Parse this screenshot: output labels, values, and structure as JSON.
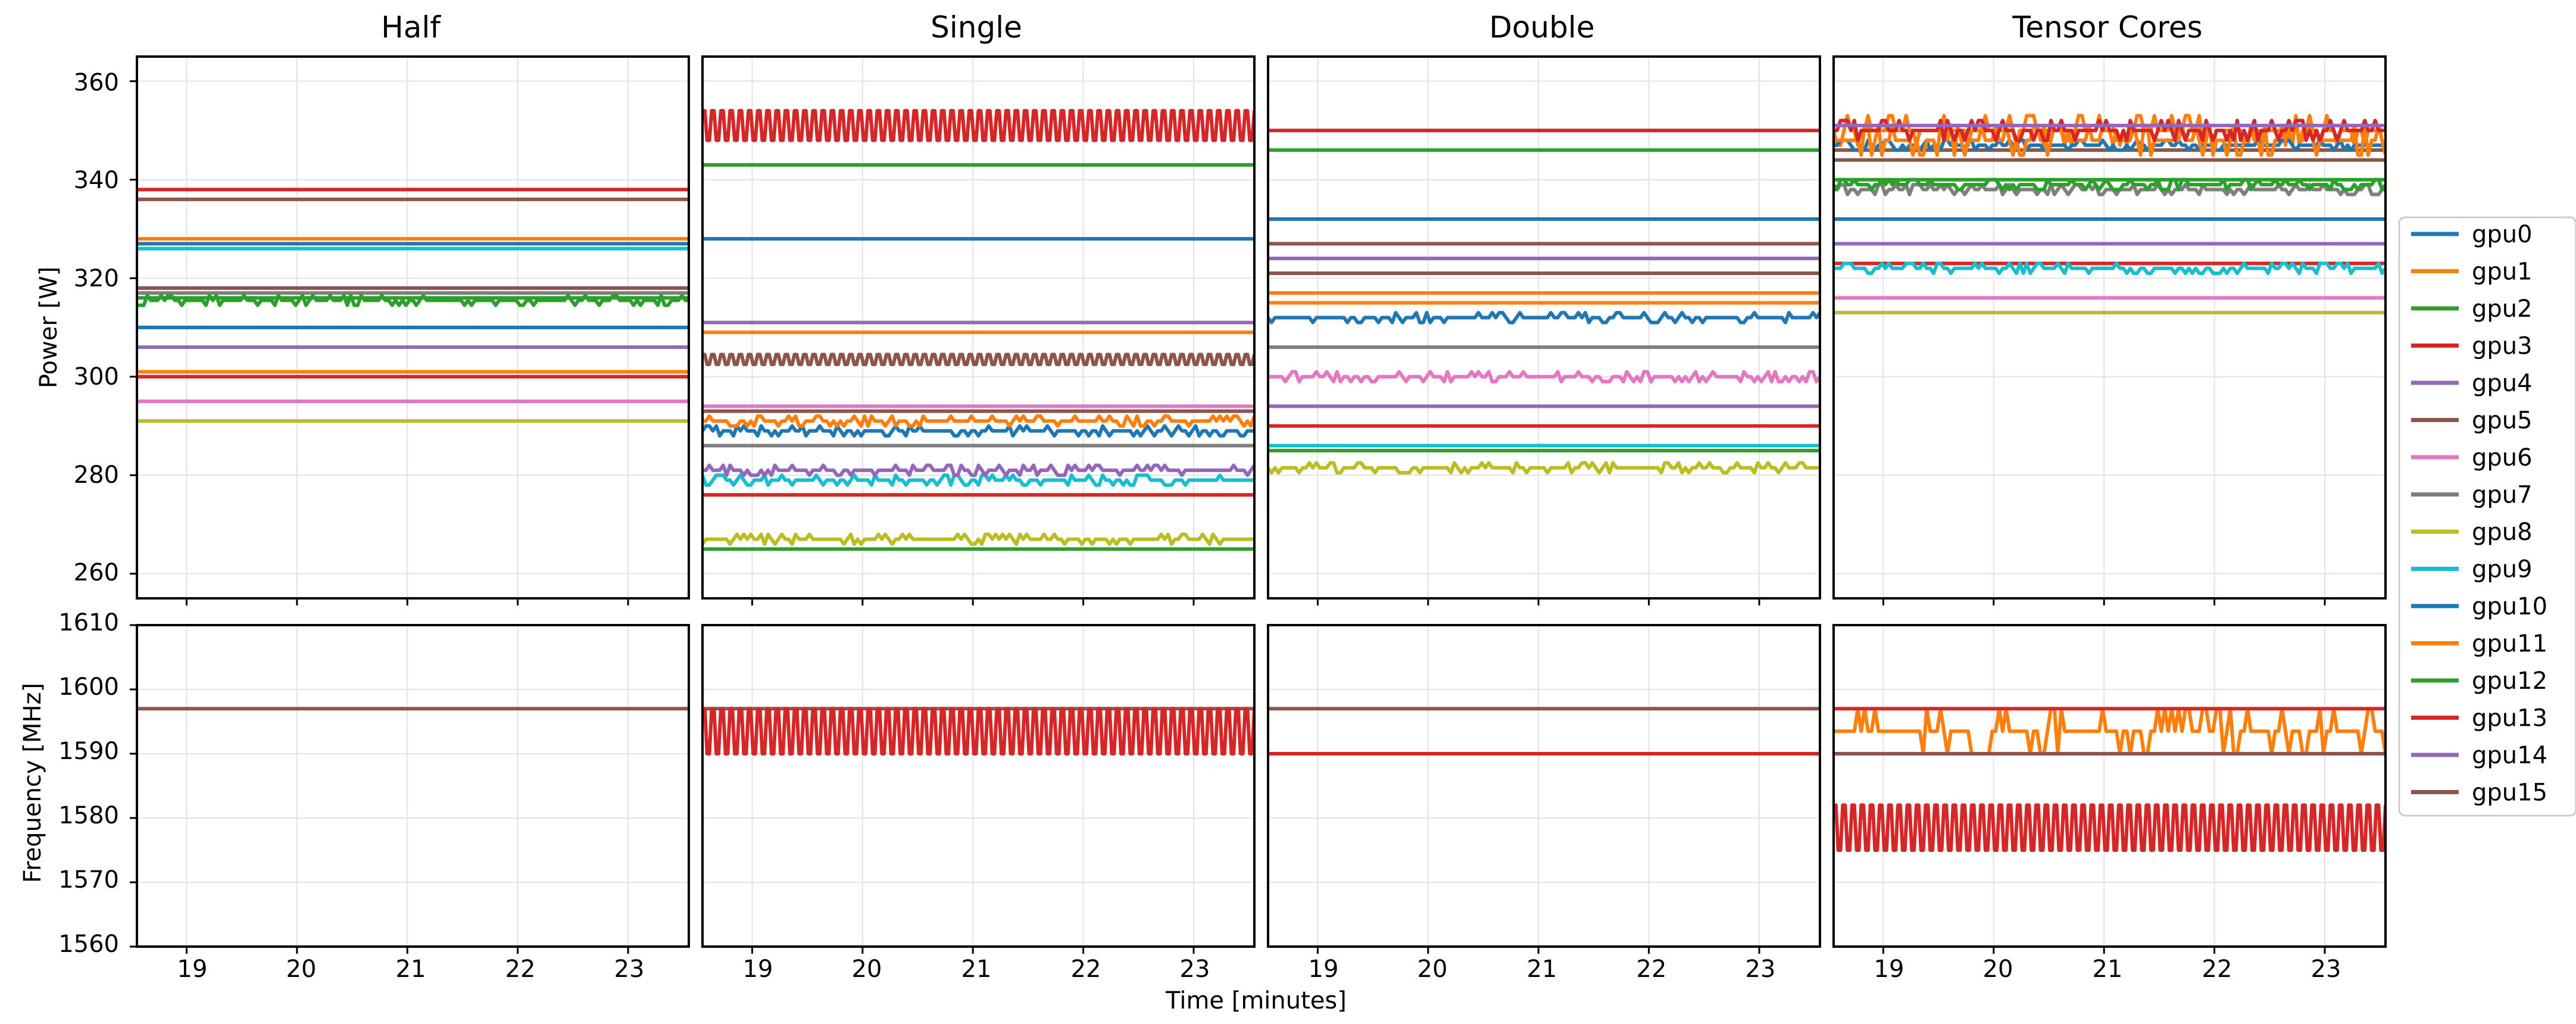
{
  "chart_data": {
    "type": "line",
    "figure_xlabel": "Time [minutes]",
    "xlim": [
      18.55,
      23.55
    ],
    "xticks": [
      "19",
      "20",
      "21",
      "22",
      "23"
    ],
    "legend_placement": "right-center",
    "series_colors": [
      "#1f77b4",
      "#ff7f0e",
      "#2ca02c",
      "#d62728",
      "#9467bd",
      "#8c564b",
      "#e377c2",
      "#7f7f7f",
      "#bcbd22",
      "#17becf",
      "#1f77b4",
      "#ff7f0e",
      "#2ca02c",
      "#d62728",
      "#9467bd",
      "#8c564b"
    ],
    "series_names": [
      "gpu0",
      "gpu1",
      "gpu2",
      "gpu3",
      "gpu4",
      "gpu5",
      "gpu6",
      "gpu7",
      "gpu8",
      "gpu9",
      "gpu10",
      "gpu11",
      "gpu12",
      "gpu13",
      "gpu14",
      "gpu15"
    ],
    "power": {
      "ylabel": "Power [W]",
      "ylim": [
        255,
        365
      ],
      "yticks": [
        "260",
        "280",
        "300",
        "320",
        "340",
        "360"
      ]
    },
    "frequency": {
      "ylabel": "Frequency [MHz]",
      "ylim": [
        1560,
        1610
      ],
      "yticks": [
        "1560",
        "1570",
        "1580",
        "1590",
        "1600",
        "1610"
      ]
    },
    "panels": [
      {
        "title": "Half",
        "power": [
          {
            "name": "gpu0",
            "base": 310,
            "pattern": "flat"
          },
          {
            "name": "gpu1",
            "base": 301,
            "pattern": "flat"
          },
          {
            "name": "gpu2",
            "base": 316,
            "pattern": "flat"
          },
          {
            "name": "gpu3",
            "base": 338,
            "pattern": "flat"
          },
          {
            "name": "gpu4",
            "base": 306,
            "pattern": "flat"
          },
          {
            "name": "gpu5",
            "base": 336,
            "pattern": "flat"
          },
          {
            "name": "gpu6",
            "base": 295,
            "pattern": "flat"
          },
          {
            "name": "gpu7",
            "base": 317,
            "pattern": "flat"
          },
          {
            "name": "gpu8",
            "base": 291,
            "pattern": "flat"
          },
          {
            "name": "gpu9",
            "base": 326,
            "pattern": "flat"
          },
          {
            "name": "gpu10",
            "base": 327,
            "pattern": "flat"
          },
          {
            "name": "gpu11",
            "base": 328,
            "pattern": "flat"
          },
          {
            "name": "gpu12",
            "base": 315.5,
            "pattern": "noisy",
            "amp": 1
          },
          {
            "name": "gpu13",
            "base": 300,
            "pattern": "flat"
          },
          {
            "name": "gpu14",
            "base": 318,
            "pattern": "flat"
          },
          {
            "name": "gpu15",
            "base": 318,
            "pattern": "flat"
          }
        ],
        "frequency": [
          {
            "name": "gpu15",
            "base": 1597,
            "pattern": "flat"
          }
        ]
      },
      {
        "title": "Single",
        "power": [
          {
            "name": "gpu0",
            "base": 328,
            "pattern": "flat"
          },
          {
            "name": "gpu1",
            "base": 309,
            "pattern": "flat"
          },
          {
            "name": "gpu2",
            "base": 343,
            "pattern": "flat"
          },
          {
            "name": "gpu3",
            "base": 351,
            "pattern": "osc",
            "amp": 3
          },
          {
            "name": "gpu4",
            "base": 311,
            "pattern": "flat"
          },
          {
            "name": "gpu5",
            "base": 303.5,
            "pattern": "osc",
            "amp": 1
          },
          {
            "name": "gpu6",
            "base": 294,
            "pattern": "flat"
          },
          {
            "name": "gpu7",
            "base": 286,
            "pattern": "flat"
          },
          {
            "name": "gpu8",
            "base": 267,
            "pattern": "noisy",
            "amp": 1
          },
          {
            "name": "gpu9",
            "base": 279,
            "pattern": "noisy",
            "amp": 1
          },
          {
            "name": "gpu10",
            "base": 289,
            "pattern": "noisy",
            "amp": 1
          },
          {
            "name": "gpu11",
            "base": 291,
            "pattern": "noisy",
            "amp": 1
          },
          {
            "name": "gpu12",
            "base": 265,
            "pattern": "flat"
          },
          {
            "name": "gpu13",
            "base": 276,
            "pattern": "flat"
          },
          {
            "name": "gpu14",
            "base": 281,
            "pattern": "noisy",
            "amp": 1
          },
          {
            "name": "gpu15",
            "base": 293,
            "pattern": "flat"
          }
        ],
        "frequency": [
          {
            "name": "gpu15",
            "base": 1597,
            "pattern": "flat"
          },
          {
            "name": "gpu13",
            "base": 1593.5,
            "pattern": "osc",
            "amp": 3.5
          }
        ]
      },
      {
        "title": "Double",
        "power": [
          {
            "name": "gpu0",
            "base": 332,
            "pattern": "flat"
          },
          {
            "name": "gpu1",
            "base": 317,
            "pattern": "flat"
          },
          {
            "name": "gpu2",
            "base": 346,
            "pattern": "flat"
          },
          {
            "name": "gpu3",
            "base": 350,
            "pattern": "flat"
          },
          {
            "name": "gpu4",
            "base": 324,
            "pattern": "flat"
          },
          {
            "name": "gpu5",
            "base": 327,
            "pattern": "flat"
          },
          {
            "name": "gpu6",
            "base": 300,
            "pattern": "noisy",
            "amp": 1
          },
          {
            "name": "gpu7",
            "base": 306,
            "pattern": "flat"
          },
          {
            "name": "gpu8",
            "base": 281.5,
            "pattern": "noisy",
            "amp": 1
          },
          {
            "name": "gpu9",
            "base": 286,
            "pattern": "flat"
          },
          {
            "name": "gpu10",
            "base": 312,
            "pattern": "noisy",
            "amp": 1
          },
          {
            "name": "gpu11",
            "base": 315,
            "pattern": "flat"
          },
          {
            "name": "gpu12",
            "base": 285,
            "pattern": "flat"
          },
          {
            "name": "gpu13",
            "base": 290,
            "pattern": "flat"
          },
          {
            "name": "gpu14",
            "base": 294,
            "pattern": "flat"
          },
          {
            "name": "gpu15",
            "base": 321,
            "pattern": "flat"
          }
        ],
        "frequency": [
          {
            "name": "gpu15",
            "base": 1597,
            "pattern": "flat"
          },
          {
            "name": "gpu13",
            "base": 1590,
            "pattern": "flat"
          }
        ]
      },
      {
        "title": "Tensor Cores",
        "power": [
          {
            "name": "gpu0",
            "base": 332,
            "pattern": "flat"
          },
          {
            "name": "gpu1",
            "base": 350,
            "pattern": "noisy",
            "amp": 3
          },
          {
            "name": "gpu2",
            "base": 340,
            "pattern": "flat"
          },
          {
            "name": "gpu3",
            "base": 323,
            "pattern": "flat"
          },
          {
            "name": "gpu4",
            "base": 327,
            "pattern": "flat"
          },
          {
            "name": "gpu5",
            "base": 346,
            "pattern": "flat"
          },
          {
            "name": "gpu6",
            "base": 316,
            "pattern": "flat"
          },
          {
            "name": "gpu7",
            "base": 338,
            "pattern": "noisy",
            "amp": 1
          },
          {
            "name": "gpu8",
            "base": 313,
            "pattern": "flat"
          },
          {
            "name": "gpu9",
            "base": 322,
            "pattern": "noisy",
            "amp": 1
          },
          {
            "name": "gpu10",
            "base": 347,
            "pattern": "noisy",
            "amp": 1
          },
          {
            "name": "gpu11",
            "base": 348,
            "pattern": "noisy",
            "amp": 3
          },
          {
            "name": "gpu12",
            "base": 339,
            "pattern": "noisy",
            "amp": 1
          },
          {
            "name": "gpu13",
            "base": 350,
            "pattern": "noisy",
            "amp": 2
          },
          {
            "name": "gpu14",
            "base": 351,
            "pattern": "flat"
          },
          {
            "name": "gpu15",
            "base": 344,
            "pattern": "flat"
          }
        ],
        "frequency": [
          {
            "name": "gpu11",
            "base": 1593.5,
            "pattern": "noisy",
            "amp": 3.5
          },
          {
            "name": "gpu15",
            "base": 1590,
            "pattern": "flat"
          },
          {
            "name": "gpu3",
            "base": 1597,
            "pattern": "flat"
          },
          {
            "name": "gpu13",
            "base": 1578.5,
            "pattern": "osc",
            "amp": 3.5
          }
        ]
      }
    ]
  }
}
